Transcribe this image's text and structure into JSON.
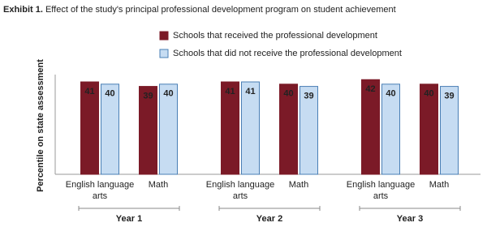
{
  "chart_data": {
    "type": "grouped_bar",
    "title_label": "Exhibit 1.",
    "title": "Effect of the study's principal professional development program on student achievement",
    "y_label": "Percentile on state assessment",
    "categories": [
      "English language arts",
      "Math",
      "English language arts",
      "Math",
      "English language arts",
      "Math"
    ],
    "groups": [
      "Year 1",
      "Year 2",
      "Year 3"
    ],
    "series": [
      {
        "name": "Schools that received the professional development",
        "color": "#7b1a27",
        "values": [
          41,
          39,
          41,
          40,
          42,
          40
        ]
      },
      {
        "name": "Schools that did not receive the professional development",
        "color": "#c6dcf2",
        "values": [
          40,
          40,
          41,
          39,
          40,
          39
        ]
      }
    ],
    "ylim": [
      0,
      50
    ]
  }
}
